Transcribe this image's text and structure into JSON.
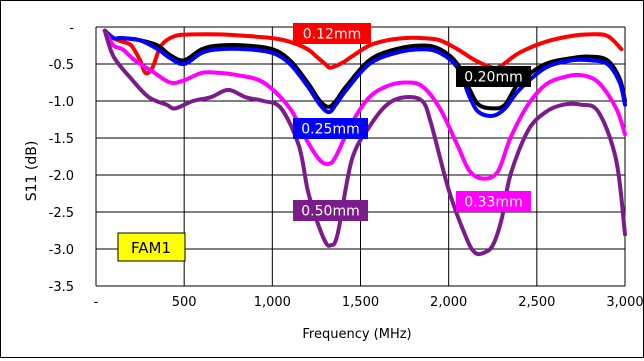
{
  "chart_data": {
    "type": "line",
    "title": "",
    "xlabel": "Frequency (MHz)",
    "ylabel": "S11 (dB)",
    "xlim": [
      0,
      3000
    ],
    "ylim": [
      -3.5,
      0
    ],
    "x_ticks": [
      0,
      500,
      1000,
      1500,
      2000,
      2500,
      3000
    ],
    "x_tick_labels": [
      "-",
      "500",
      "1,000",
      "1,500",
      "2,000",
      "2,500",
      "3,000"
    ],
    "y_ticks": [
      0,
      -0.5,
      -1.0,
      -1.5,
      -2.0,
      -2.5,
      -3.0,
      -3.5
    ],
    "y_tick_labels": [
      "-",
      "-0.5",
      "-1.0",
      "-1.5",
      "-2.0",
      "-2.5",
      "-3.0",
      "-3.5"
    ],
    "grid": true,
    "annotation": "FAM1",
    "series": [
      {
        "name": "0.12mm",
        "color": "#ff0000",
        "x": [
          50,
          100,
          150,
          200,
          250,
          280,
          320,
          370,
          450,
          550,
          700,
          850,
          1000,
          1100,
          1200,
          1250,
          1300,
          1330,
          1400,
          1450,
          1550,
          1650,
          1750,
          1850,
          1950,
          2050,
          2150,
          2250,
          2300,
          2400,
          2550,
          2700,
          2800,
          2900,
          2980
        ],
        "y": [
          -0.05,
          -0.15,
          -0.2,
          -0.25,
          -0.45,
          -0.62,
          -0.55,
          -0.25,
          -0.12,
          -0.1,
          -0.1,
          -0.12,
          -0.15,
          -0.2,
          -0.3,
          -0.4,
          -0.5,
          -0.55,
          -0.48,
          -0.4,
          -0.25,
          -0.18,
          -0.15,
          -0.15,
          -0.18,
          -0.3,
          -0.45,
          -0.55,
          -0.52,
          -0.35,
          -0.2,
          -0.12,
          -0.1,
          -0.12,
          -0.3
        ]
      },
      {
        "name": "0.20mm",
        "color": "#000000",
        "x": [
          50,
          100,
          150,
          250,
          350,
          420,
          500,
          600,
          700,
          850,
          1000,
          1100,
          1200,
          1270,
          1320,
          1360,
          1420,
          1550,
          1700,
          1850,
          1950,
          2050,
          2120,
          2170,
          2250,
          2320,
          2400,
          2550,
          2700,
          2800,
          2900,
          2970,
          3000
        ],
        "y": [
          -0.05,
          -0.15,
          -0.15,
          -0.18,
          -0.25,
          -0.38,
          -0.45,
          -0.3,
          -0.25,
          -0.25,
          -0.3,
          -0.45,
          -0.75,
          -1.0,
          -1.08,
          -1.0,
          -0.8,
          -0.45,
          -0.3,
          -0.25,
          -0.3,
          -0.5,
          -0.85,
          -1.05,
          -1.1,
          -1.05,
          -0.75,
          -0.5,
          -0.42,
          -0.4,
          -0.45,
          -0.7,
          -1.0
        ]
      },
      {
        "name": "0.25mm",
        "color": "#0000ff",
        "x": [
          50,
          100,
          150,
          250,
          350,
          420,
          500,
          600,
          700,
          850,
          1000,
          1100,
          1200,
          1270,
          1320,
          1360,
          1420,
          1550,
          1700,
          1850,
          1950,
          2050,
          2120,
          2170,
          2250,
          2320,
          2400,
          2550,
          2700,
          2800,
          2900,
          2970,
          3000
        ],
        "y": [
          -0.05,
          -0.15,
          -0.15,
          -0.18,
          -0.3,
          -0.42,
          -0.5,
          -0.35,
          -0.3,
          -0.3,
          -0.35,
          -0.5,
          -0.8,
          -1.05,
          -1.15,
          -1.05,
          -0.85,
          -0.5,
          -0.35,
          -0.3,
          -0.35,
          -0.55,
          -0.95,
          -1.15,
          -1.2,
          -1.1,
          -0.85,
          -0.55,
          -0.45,
          -0.45,
          -0.5,
          -0.75,
          -1.05
        ]
      },
      {
        "name": "0.33mm",
        "color": "#ff00ff",
        "x": [
          50,
          100,
          150,
          220,
          320,
          420,
          500,
          600,
          700,
          800,
          950,
          1100,
          1200,
          1270,
          1320,
          1360,
          1450,
          1550,
          1650,
          1750,
          1850,
          1950,
          2050,
          2120,
          2200,
          2280,
          2350,
          2450,
          2550,
          2650,
          2750,
          2850,
          2950,
          3000
        ],
        "y": [
          -0.05,
          -0.25,
          -0.3,
          -0.45,
          -0.6,
          -0.75,
          -0.72,
          -0.62,
          -0.62,
          -0.65,
          -0.75,
          -1.1,
          -1.55,
          -1.8,
          -1.85,
          -1.75,
          -1.3,
          -0.95,
          -0.8,
          -0.75,
          -0.8,
          -1.1,
          -1.6,
          -1.95,
          -2.05,
          -1.95,
          -1.5,
          -1.05,
          -0.78,
          -0.68,
          -0.65,
          -0.75,
          -1.1,
          -1.45
        ]
      },
      {
        "name": "0.50mm",
        "color": "#7b1c8b",
        "x": [
          50,
          100,
          200,
          300,
          400,
          450,
          550,
          650,
          750,
          850,
          950,
          1050,
          1150,
          1200,
          1250,
          1300,
          1330,
          1370,
          1450,
          1550,
          1650,
          1750,
          1850,
          1900,
          2000,
          2100,
          2150,
          2200,
          2250,
          2300,
          2350,
          2450,
          2550,
          2650,
          2750,
          2850,
          2950,
          3000
        ],
        "y": [
          -0.05,
          -0.4,
          -0.7,
          -0.95,
          -1.05,
          -1.1,
          -1.0,
          -0.95,
          -0.85,
          -0.95,
          -1.0,
          -1.1,
          -1.6,
          -2.2,
          -2.6,
          -2.9,
          -2.95,
          -2.8,
          -1.8,
          -1.35,
          -1.05,
          -0.95,
          -1.0,
          -1.3,
          -2.2,
          -2.85,
          -3.05,
          -3.05,
          -2.95,
          -2.6,
          -2.0,
          -1.4,
          -1.15,
          -1.05,
          -1.05,
          -1.15,
          -1.8,
          -2.8
        ]
      }
    ]
  },
  "labels": [
    {
      "text": "0.12mm",
      "bg": "#ff0000",
      "fg": "#ffffff"
    },
    {
      "text": "0.20mm",
      "bg": "#000000",
      "fg": "#ffffff"
    },
    {
      "text": "0.25mm",
      "bg": "#0000ff",
      "fg": "#ffffff"
    },
    {
      "text": "0.33mm",
      "bg": "#ff00ff",
      "fg": "#ffffff"
    },
    {
      "text": "0.50mm",
      "bg": "#7b1c8b",
      "fg": "#ffffff"
    }
  ]
}
